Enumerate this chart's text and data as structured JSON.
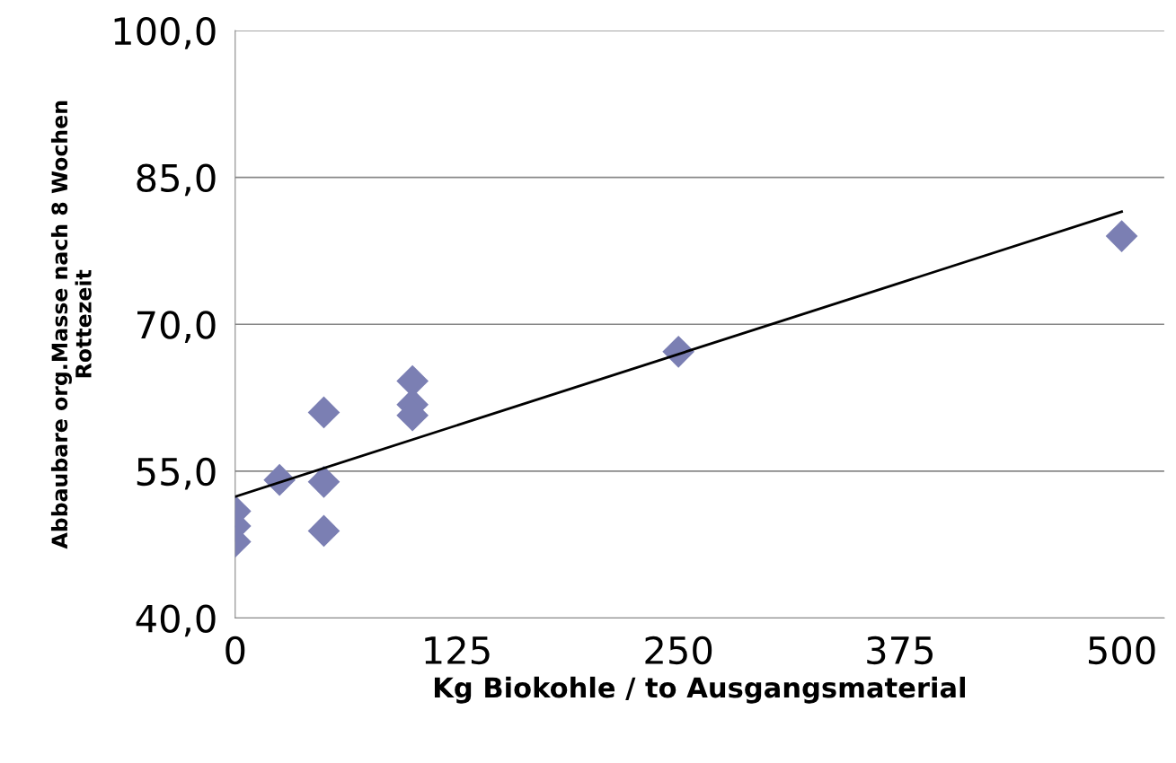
{
  "chart_data": {
    "type": "scatter",
    "xlabel": "Kg Biokohle / to Ausgangsmaterial",
    "ylabel": "Abbaubare org.Masse nach 8 Wochen\nRottezeit",
    "series": [
      {
        "color": "#7b7fb3",
        "marker": "diamond",
        "x": [
          0,
          0,
          0,
          25,
          50,
          50,
          50,
          100,
          100,
          100,
          250,
          500
        ],
        "values": [
          50.9,
          49.4,
          47.8,
          54.1,
          61.0,
          53.9,
          48.9,
          64.2,
          61.8,
          60.7,
          67.2,
          79.0
        ]
      },
      {
        "type": "line",
        "color": "#000000",
        "marker": "none",
        "line_style": "solid",
        "x": [
          0,
          500
        ],
        "values": [
          52.4,
          81.5
        ]
      }
    ],
    "xlim": [
      0,
      524
    ],
    "xticks": [
      0,
      125,
      250,
      375,
      500
    ],
    "ylim": [
      40,
      100
    ],
    "yticks": [
      {
        "value": 40,
        "label": "40,0"
      },
      {
        "value": 55,
        "label": "55,0"
      },
      {
        "value": 70,
        "label": "70,0"
      },
      {
        "value": 85,
        "label": "85,0"
      },
      {
        "value": 100,
        "label": "100,0"
      }
    ],
    "grid": "y"
  }
}
